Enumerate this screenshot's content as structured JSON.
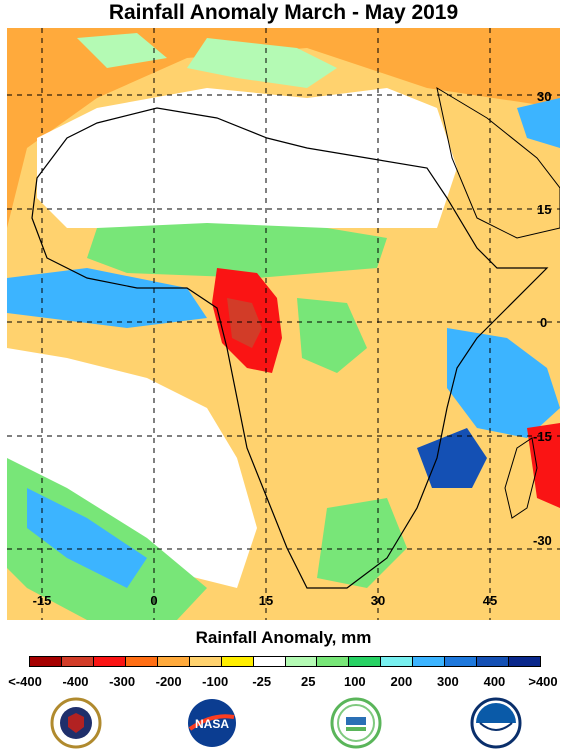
{
  "title": "Rainfall Anomaly March - May 2019",
  "map": {
    "lat_labels": [
      "30",
      "15",
      "0",
      "-15",
      "-30"
    ],
    "lon_labels": [
      "-15",
      "0",
      "15",
      "30",
      "45"
    ]
  },
  "legend": {
    "title": "Rainfall Anomaly, mm",
    "colors": [
      "#a50000",
      "#d23c28",
      "#fa1414",
      "#ff6e14",
      "#ffaa3c",
      "#ffd26e",
      "#ffee00",
      "#ffffff",
      "#b4fab4",
      "#78e678",
      "#28d264",
      "#78f0f0",
      "#3cb4ff",
      "#1e78dc",
      "#1450b4",
      "#0a288c"
    ],
    "labels": [
      "<-400",
      "-400",
      "-300",
      "-200",
      "-100",
      "-25",
      "25",
      "100",
      "200",
      "300",
      "400",
      ">400"
    ]
  },
  "logos": [
    "defense-health-agency",
    "nasa",
    "usda-cmave",
    "noaa"
  ]
}
